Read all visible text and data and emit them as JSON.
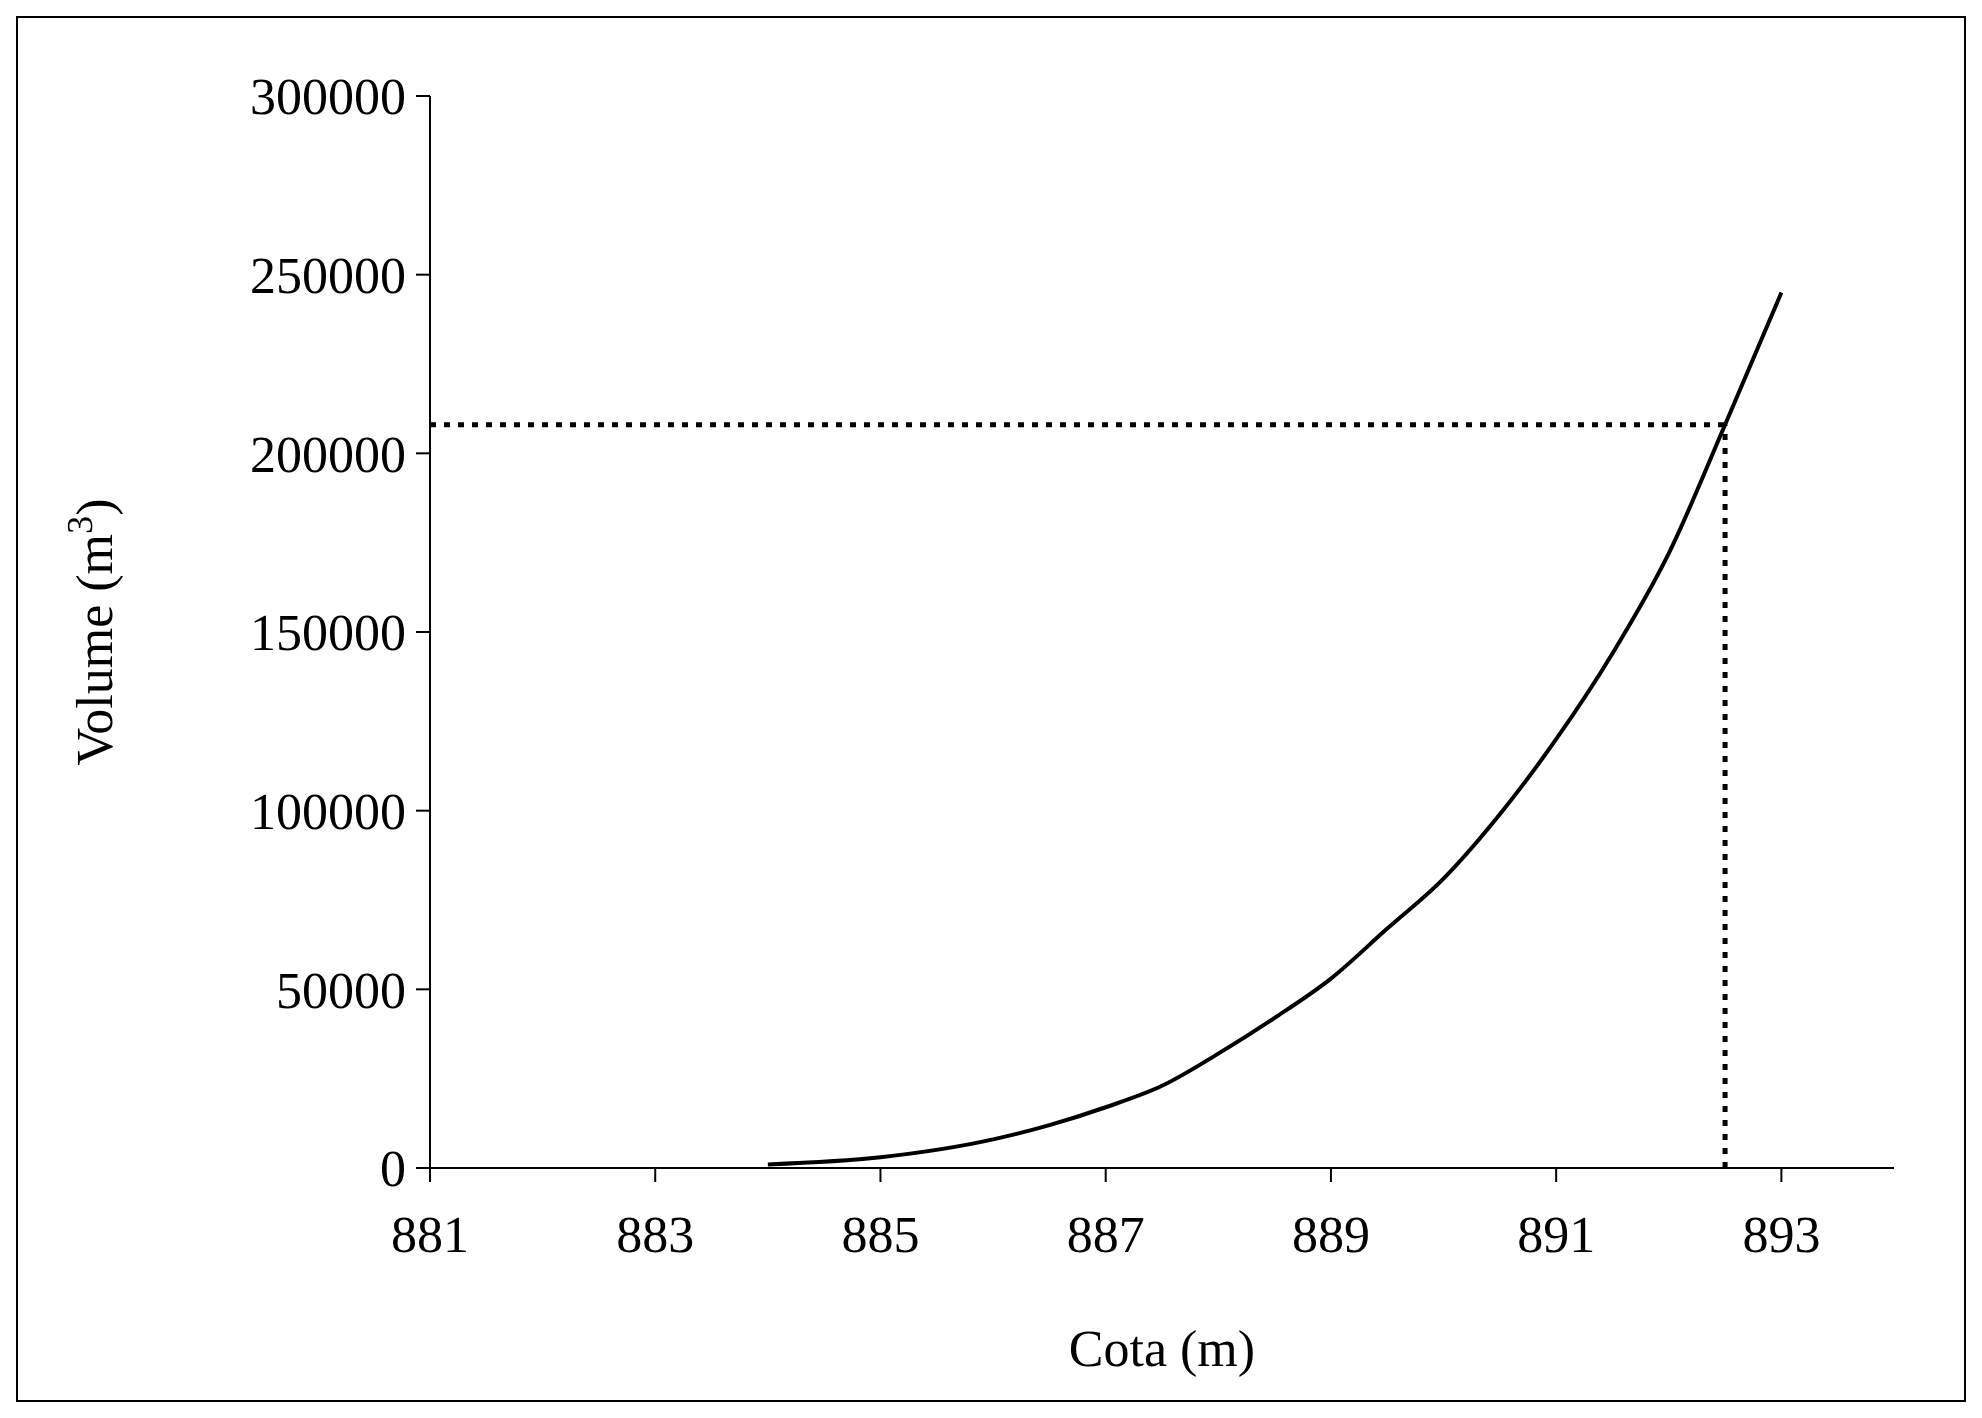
{
  "chart_data": {
    "type": "line",
    "xlabel": "Cota (m)",
    "ylabel": "Volume (m$^{3}$)",
    "x": [
      884,
      885,
      886,
      886.5,
      887,
      887.5,
      888,
      888.5,
      889,
      889.5,
      890,
      890.5,
      891,
      891.5,
      892,
      892.5,
      893
    ],
    "series": [
      {
        "color": "#000000",
        "values": [
          1000,
          3000,
          8000,
          12000,
          17000,
          23000,
          32000,
          42000,
          53000,
          67000,
          81000,
          99000,
          120000,
          144000,
          172000,
          208000,
          245000
        ]
      }
    ],
    "xlim": [
      881,
      894
    ],
    "xticks": [
      881,
      883,
      885,
      887,
      889,
      891,
      893
    ],
    "ylim": [
      0,
      300000
    ],
    "yticks": [
      0,
      50000,
      100000,
      150000,
      200000,
      250000,
      300000
    ],
    "ref_lines": [
      {
        "axis": "y",
        "value": 208000,
        "line_style": "dotted",
        "color": "#000000"
      },
      {
        "axis": "x",
        "value": 892.5,
        "line_style": "dotted",
        "color": "#000000"
      }
    ],
    "grid": false,
    "marker": "none",
    "line_style": "solid"
  }
}
